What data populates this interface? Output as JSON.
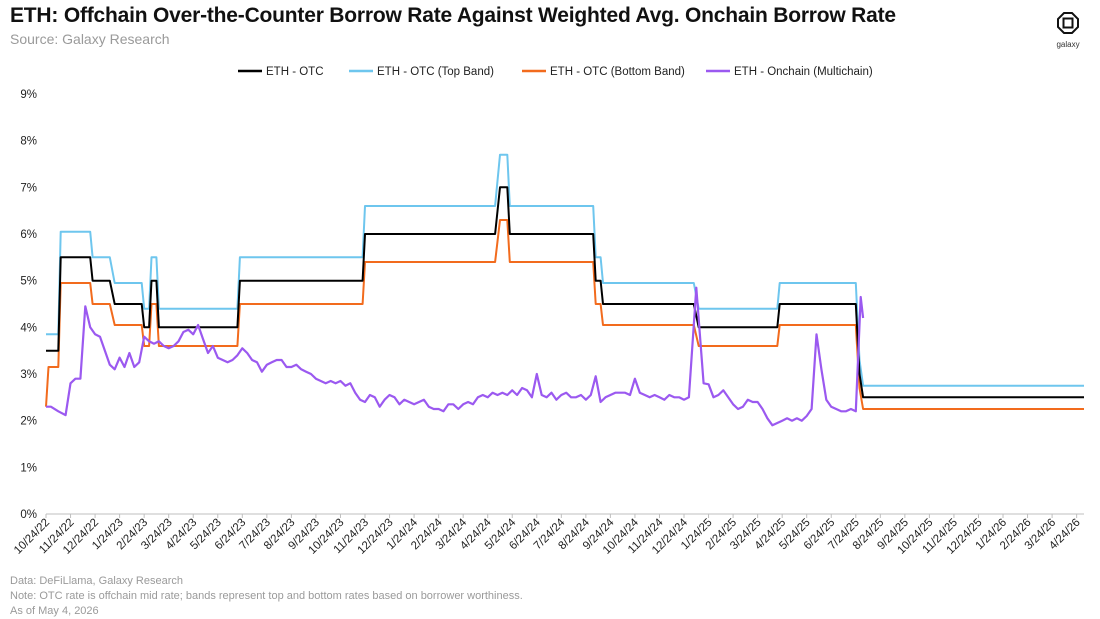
{
  "header": {
    "title": "ETH: Offchain Over-the-Counter Borrow Rate Against Weighted Avg. Onchain Borrow Rate",
    "subtitle": "Source: Galaxy Research",
    "logo_label": "galaxy"
  },
  "footnotes": [
    "Data: DeFiLlama, Galaxy Research",
    "Note: OTC rate is offchain mid rate; bands represent top and bottom rates based on borrower worthiness.",
    "As of May 4, 2026"
  ],
  "chart_data": {
    "type": "line",
    "x_start": "10/24/22",
    "x_end": "5/4/26",
    "ylim": [
      0,
      9
    ],
    "yticks": [
      "0%",
      "1%",
      "2%",
      "3%",
      "4%",
      "5%",
      "6%",
      "7%",
      "8%",
      "9%"
    ],
    "categories": [
      "10/24/22",
      "11/24/22",
      "12/24/22",
      "1/24/23",
      "2/24/23",
      "3/24/23",
      "4/24/23",
      "5/24/23",
      "6/24/23",
      "7/24/23",
      "8/24/23",
      "9/24/23",
      "10/24/23",
      "11/24/23",
      "12/24/23",
      "1/24/24",
      "2/24/24",
      "3/24/24",
      "4/24/24",
      "5/24/24",
      "6/24/24",
      "7/24/24",
      "8/24/24",
      "9/24/24",
      "10/24/24",
      "11/24/24",
      "12/24/24",
      "1/24/25",
      "2/24/25",
      "3/24/25",
      "4/24/25",
      "5/24/25",
      "6/24/25",
      "7/24/25",
      "8/24/25",
      "9/24/25",
      "10/24/25",
      "11/24/25",
      "12/24/25",
      "1/24/26",
      "2/24/26",
      "3/24/26",
      "4/24/26"
    ],
    "grid": false,
    "legend_position": "top",
    "series": [
      {
        "name": "ETH - OTC",
        "color": "#000000",
        "points": [
          [
            0,
            3.5
          ],
          [
            0.5,
            3.5
          ],
          [
            0.6,
            5.5
          ],
          [
            1.8,
            5.5
          ],
          [
            1.9,
            5.0
          ],
          [
            2.6,
            5.0
          ],
          [
            2.8,
            4.5
          ],
          [
            3.9,
            4.5
          ],
          [
            4.0,
            4.0
          ],
          [
            4.2,
            4.0
          ],
          [
            4.3,
            5.0
          ],
          [
            4.5,
            5.0
          ],
          [
            4.6,
            4.0
          ],
          [
            7.8,
            4.0
          ],
          [
            7.9,
            5.0
          ],
          [
            12.9,
            5.0
          ],
          [
            13.0,
            6.0
          ],
          [
            18.3,
            6.0
          ],
          [
            18.5,
            7.0
          ],
          [
            18.8,
            7.0
          ],
          [
            18.9,
            6.0
          ],
          [
            22.3,
            6.0
          ],
          [
            22.4,
            5.0
          ],
          [
            22.6,
            5.0
          ],
          [
            22.7,
            4.5
          ],
          [
            26.4,
            4.5
          ],
          [
            26.6,
            4.0
          ],
          [
            29.8,
            4.0
          ],
          [
            29.9,
            4.5
          ],
          [
            31.1,
            4.5
          ],
          [
            31.2,
            4.5
          ],
          [
            33.0,
            4.5
          ],
          [
            33.15,
            3.0
          ],
          [
            33.3,
            2.5
          ],
          [
            42.3,
            2.5
          ]
        ]
      },
      {
        "name": "ETH - OTC (Top Band)",
        "color": "#6ec6ee",
        "points": [
          [
            0,
            3.85
          ],
          [
            0.5,
            3.85
          ],
          [
            0.6,
            6.05
          ],
          [
            1.8,
            6.05
          ],
          [
            1.9,
            5.5
          ],
          [
            2.6,
            5.5
          ],
          [
            2.8,
            4.95
          ],
          [
            3.9,
            4.95
          ],
          [
            4.0,
            4.4
          ],
          [
            4.2,
            4.4
          ],
          [
            4.3,
            5.5
          ],
          [
            4.5,
            5.5
          ],
          [
            4.6,
            4.4
          ],
          [
            7.8,
            4.4
          ],
          [
            7.9,
            5.5
          ],
          [
            12.9,
            5.5
          ],
          [
            13.0,
            6.6
          ],
          [
            18.3,
            6.6
          ],
          [
            18.5,
            7.7
          ],
          [
            18.8,
            7.7
          ],
          [
            18.9,
            6.6
          ],
          [
            22.3,
            6.6
          ],
          [
            22.4,
            5.5
          ],
          [
            22.6,
            5.5
          ],
          [
            22.7,
            4.95
          ],
          [
            26.4,
            4.95
          ],
          [
            26.6,
            4.4
          ],
          [
            29.8,
            4.4
          ],
          [
            29.9,
            4.95
          ],
          [
            33.0,
            4.95
          ],
          [
            33.15,
            3.3
          ],
          [
            33.3,
            2.75
          ],
          [
            42.3,
            2.75
          ]
        ]
      },
      {
        "name": "ETH - OTC (Bottom Band)",
        "color": "#f26b1d",
        "points": [
          [
            0,
            2.3
          ],
          [
            0.1,
            3.15
          ],
          [
            0.5,
            3.15
          ],
          [
            0.6,
            4.95
          ],
          [
            1.8,
            4.95
          ],
          [
            1.9,
            4.5
          ],
          [
            2.6,
            4.5
          ],
          [
            2.8,
            4.05
          ],
          [
            3.9,
            4.05
          ],
          [
            4.0,
            3.6
          ],
          [
            4.2,
            3.6
          ],
          [
            4.3,
            4.5
          ],
          [
            4.5,
            4.5
          ],
          [
            4.6,
            3.6
          ],
          [
            7.8,
            3.6
          ],
          [
            7.9,
            4.5
          ],
          [
            12.9,
            4.5
          ],
          [
            13.0,
            5.4
          ],
          [
            18.3,
            5.4
          ],
          [
            18.5,
            6.3
          ],
          [
            18.8,
            6.3
          ],
          [
            18.9,
            5.4
          ],
          [
            22.3,
            5.4
          ],
          [
            22.4,
            4.5
          ],
          [
            22.6,
            4.5
          ],
          [
            22.7,
            4.05
          ],
          [
            26.4,
            4.05
          ],
          [
            26.6,
            3.6
          ],
          [
            29.8,
            3.6
          ],
          [
            29.9,
            4.05
          ],
          [
            33.0,
            4.05
          ],
          [
            33.15,
            2.7
          ],
          [
            33.3,
            2.25
          ],
          [
            42.3,
            2.25
          ]
        ]
      },
      {
        "name": "ETH - Onchain (Multichain)",
        "color": "#9b59f0",
        "points": [
          [
            0,
            2.3
          ],
          [
            0.2,
            2.3
          ],
          [
            0.5,
            2.2
          ],
          [
            0.8,
            2.12
          ],
          [
            1.0,
            2.8
          ],
          [
            1.2,
            2.9
          ],
          [
            1.4,
            2.9
          ],
          [
            1.6,
            4.45
          ],
          [
            1.8,
            4.0
          ],
          [
            2.0,
            3.85
          ],
          [
            2.2,
            3.8
          ],
          [
            2.4,
            3.5
          ],
          [
            2.6,
            3.2
          ],
          [
            2.8,
            3.1
          ],
          [
            3.0,
            3.35
          ],
          [
            3.2,
            3.15
          ],
          [
            3.4,
            3.45
          ],
          [
            3.6,
            3.15
          ],
          [
            3.8,
            3.25
          ],
          [
            4.0,
            3.8
          ],
          [
            4.2,
            3.7
          ],
          [
            4.4,
            3.65
          ],
          [
            4.6,
            3.7
          ],
          [
            4.8,
            3.6
          ],
          [
            5.0,
            3.55
          ],
          [
            5.2,
            3.6
          ],
          [
            5.4,
            3.7
          ],
          [
            5.6,
            3.9
          ],
          [
            5.8,
            3.95
          ],
          [
            6.0,
            3.85
          ],
          [
            6.2,
            4.05
          ],
          [
            6.4,
            3.75
          ],
          [
            6.6,
            3.45
          ],
          [
            6.8,
            3.6
          ],
          [
            7.0,
            3.35
          ],
          [
            7.2,
            3.3
          ],
          [
            7.4,
            3.25
          ],
          [
            7.6,
            3.3
          ],
          [
            7.8,
            3.4
          ],
          [
            8.0,
            3.55
          ],
          [
            8.2,
            3.45
          ],
          [
            8.4,
            3.3
          ],
          [
            8.6,
            3.25
          ],
          [
            8.8,
            3.05
          ],
          [
            9.0,
            3.2
          ],
          [
            9.2,
            3.25
          ],
          [
            9.4,
            3.3
          ],
          [
            9.6,
            3.3
          ],
          [
            9.8,
            3.15
          ],
          [
            10.0,
            3.15
          ],
          [
            10.2,
            3.2
          ],
          [
            10.4,
            3.1
          ],
          [
            10.6,
            3.05
          ],
          [
            10.8,
            3.0
          ],
          [
            11.0,
            2.9
          ],
          [
            11.2,
            2.85
          ],
          [
            11.4,
            2.8
          ],
          [
            11.6,
            2.85
          ],
          [
            11.8,
            2.8
          ],
          [
            12.0,
            2.85
          ],
          [
            12.2,
            2.75
          ],
          [
            12.4,
            2.8
          ],
          [
            12.6,
            2.6
          ],
          [
            12.8,
            2.45
          ],
          [
            13.0,
            2.4
          ],
          [
            13.2,
            2.55
          ],
          [
            13.4,
            2.5
          ],
          [
            13.6,
            2.3
          ],
          [
            13.8,
            2.45
          ],
          [
            14.0,
            2.55
          ],
          [
            14.2,
            2.5
          ],
          [
            14.4,
            2.35
          ],
          [
            14.6,
            2.45
          ],
          [
            14.8,
            2.4
          ],
          [
            15.0,
            2.35
          ],
          [
            15.2,
            2.4
          ],
          [
            15.4,
            2.45
          ],
          [
            15.6,
            2.3
          ],
          [
            15.8,
            2.25
          ],
          [
            16.0,
            2.25
          ],
          [
            16.2,
            2.2
          ],
          [
            16.4,
            2.35
          ],
          [
            16.6,
            2.35
          ],
          [
            16.8,
            2.25
          ],
          [
            17.0,
            2.35
          ],
          [
            17.2,
            2.4
          ],
          [
            17.4,
            2.35
          ],
          [
            17.6,
            2.5
          ],
          [
            17.8,
            2.55
          ],
          [
            18.0,
            2.5
          ],
          [
            18.2,
            2.6
          ],
          [
            18.4,
            2.55
          ],
          [
            18.6,
            2.6
          ],
          [
            18.8,
            2.55
          ],
          [
            19.0,
            2.65
          ],
          [
            19.2,
            2.55
          ],
          [
            19.4,
            2.7
          ],
          [
            19.6,
            2.65
          ],
          [
            19.8,
            2.5
          ],
          [
            20.0,
            3.0
          ],
          [
            20.2,
            2.55
          ],
          [
            20.4,
            2.5
          ],
          [
            20.6,
            2.6
          ],
          [
            20.8,
            2.45
          ],
          [
            21.0,
            2.55
          ],
          [
            21.2,
            2.6
          ],
          [
            21.4,
            2.5
          ],
          [
            21.6,
            2.5
          ],
          [
            21.8,
            2.55
          ],
          [
            22.0,
            2.45
          ],
          [
            22.2,
            2.55
          ],
          [
            22.4,
            2.95
          ],
          [
            22.6,
            2.4
          ],
          [
            22.8,
            2.5
          ],
          [
            23.0,
            2.55
          ],
          [
            23.2,
            2.6
          ],
          [
            23.4,
            2.6
          ],
          [
            23.6,
            2.6
          ],
          [
            23.8,
            2.55
          ],
          [
            24.0,
            2.9
          ],
          [
            24.2,
            2.6
          ],
          [
            24.4,
            2.55
          ],
          [
            24.6,
            2.5
          ],
          [
            24.8,
            2.55
          ],
          [
            25.0,
            2.5
          ],
          [
            25.2,
            2.45
          ],
          [
            25.4,
            2.55
          ],
          [
            25.6,
            2.5
          ],
          [
            25.8,
            2.5
          ],
          [
            26.0,
            2.45
          ],
          [
            26.2,
            2.5
          ],
          [
            26.5,
            4.85
          ],
          [
            26.8,
            2.8
          ],
          [
            27.0,
            2.78
          ],
          [
            27.2,
            2.5
          ],
          [
            27.4,
            2.55
          ],
          [
            27.6,
            2.65
          ],
          [
            27.8,
            2.5
          ],
          [
            28.0,
            2.35
          ],
          [
            28.2,
            2.25
          ],
          [
            28.4,
            2.3
          ],
          [
            28.6,
            2.45
          ],
          [
            28.8,
            2.4
          ],
          [
            29.0,
            2.4
          ],
          [
            29.2,
            2.25
          ],
          [
            29.4,
            2.05
          ],
          [
            29.6,
            1.9
          ],
          [
            29.8,
            1.95
          ],
          [
            30.0,
            2.0
          ],
          [
            30.2,
            2.05
          ],
          [
            30.4,
            2.0
          ],
          [
            30.6,
            2.05
          ],
          [
            30.8,
            2.0
          ],
          [
            31.0,
            2.1
          ],
          [
            31.2,
            2.25
          ],
          [
            31.4,
            3.85
          ],
          [
            31.6,
            3.1
          ],
          [
            31.8,
            2.45
          ],
          [
            32.0,
            2.3
          ],
          [
            32.2,
            2.25
          ],
          [
            32.4,
            2.2
          ],
          [
            32.6,
            2.2
          ],
          [
            32.8,
            2.25
          ],
          [
            33.0,
            2.2
          ],
          [
            33.2,
            4.65
          ],
          [
            33.3,
            4.2
          ]
        ]
      }
    ]
  }
}
